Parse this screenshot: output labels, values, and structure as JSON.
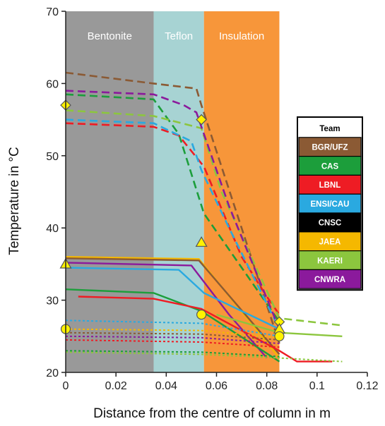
{
  "chart_data": {
    "type": "line",
    "xlabel": "Distance from the centre of column in m",
    "ylabel": "Temperature in °C",
    "xlim": [
      0,
      0.12
    ],
    "ylim": [
      20,
      70
    ],
    "x_ticks": [
      "0",
      "0.02",
      "0.04",
      "0.06",
      "0.08",
      "0.1",
      "0.12"
    ],
    "y_ticks": [
      "20",
      "30",
      "40",
      "50",
      "60",
      "70"
    ],
    "grid": false,
    "regions": [
      {
        "name": "Bentonite",
        "x0": 0,
        "x1": 0.035,
        "color": "#999999"
      },
      {
        "name": "Teflon",
        "x0": 0.035,
        "x1": 0.055,
        "color": "#a7d3d3"
      },
      {
        "name": "Insulation",
        "x0": 0.055,
        "x1": 0.085,
        "color": "#f7963a"
      }
    ],
    "legend": {
      "title": "Team",
      "placement": "right",
      "entries": [
        {
          "label": "BGR/UFZ",
          "color": "#8b5a34",
          "text_color": "#ffffff"
        },
        {
          "label": "CAS",
          "color": "#1c9e3b",
          "text_color": "#ffffff"
        },
        {
          "label": "LBNL",
          "color": "#ee1c24",
          "text_color": "#ffffff"
        },
        {
          "label": "ENSI/CAU",
          "color": "#2aa9e0",
          "text_color": "#ffffff"
        },
        {
          "label": "CNSC",
          "color": "#000000",
          "text_color": "#ffffff"
        },
        {
          "label": "JAEA",
          "color": "#f5b800",
          "text_color": "#ffffff"
        },
        {
          "label": "KAERI",
          "color": "#8cc63e",
          "text_color": "#ffffff"
        },
        {
          "label": "CNWRA",
          "color": "#8b1a9c",
          "text_color": "#ffffff"
        }
      ]
    },
    "series": [
      {
        "team": "BGR/UFZ",
        "style": "dashed",
        "x": [
          0,
          0.035,
          0.052,
          0.054,
          0.085
        ],
        "y": [
          61.5,
          60,
          59.3,
          57,
          24
        ]
      },
      {
        "team": "CAS",
        "style": "dashed",
        "x": [
          0,
          0.035,
          0.045,
          0.055,
          0.065,
          0.085
        ],
        "y": [
          58.5,
          57.8,
          53,
          42,
          37,
          27
        ]
      },
      {
        "team": "LBNL",
        "style": "dashed",
        "x": [
          0,
          0.035,
          0.045,
          0.055,
          0.07,
          0.08,
          0.085
        ],
        "y": [
          54.5,
          54,
          52.8,
          48.5,
          36,
          30.5,
          28
        ]
      },
      {
        "team": "ENSI/CAU",
        "style": "dashed",
        "x": [
          0,
          0.035,
          0.05,
          0.054,
          0.065,
          0.085
        ],
        "y": [
          55,
          54.5,
          52,
          48,
          40,
          26
        ]
      },
      {
        "team": "KAERI",
        "style": "dashed",
        "x": [
          0,
          0.035,
          0.054,
          0.062,
          0.085,
          0.11
        ],
        "y": [
          56.3,
          55.5,
          53.8,
          45,
          27.5,
          26.5
        ]
      },
      {
        "team": "CNWRA",
        "style": "dashed",
        "x": [
          0,
          0.035,
          0.047,
          0.052,
          0.054,
          0.065,
          0.085
        ],
        "y": [
          59,
          58.5,
          57,
          56,
          54,
          43,
          26
        ]
      },
      {
        "team": "JAEA",
        "style": "solid",
        "x": [
          0,
          0.053,
          0.085
        ],
        "y": [
          36,
          35.7,
          22
        ]
      },
      {
        "team": "BGR/UFZ",
        "style": "solid",
        "x": [
          0,
          0.053,
          0.085
        ],
        "y": [
          35.8,
          35.5,
          22.5
        ]
      },
      {
        "team": "CNWRA",
        "style": "solid",
        "x": [
          0,
          0.05,
          0.065,
          0.08
        ],
        "y": [
          35.2,
          34.8,
          28,
          22
        ]
      },
      {
        "team": "ENSI/CAU",
        "style": "solid",
        "x": [
          0,
          0.045,
          0.055,
          0.085
        ],
        "y": [
          34.5,
          34.2,
          31,
          26
        ]
      },
      {
        "team": "CAS",
        "style": "solid",
        "x": [
          0,
          0.035,
          0.054,
          0.085
        ],
        "y": [
          31.5,
          31,
          28.5,
          21.5
        ]
      },
      {
        "team": "LBNL",
        "style": "solid",
        "x": [
          0.005,
          0.035,
          0.054,
          0.085,
          0.092,
          0.106
        ],
        "y": [
          30.5,
          30.2,
          28.8,
          23,
          21.5,
          21.5
        ]
      },
      {
        "team": "KAERI",
        "style": "solid",
        "x": [
          0.06,
          0.085,
          0.11
        ],
        "y": [
          28,
          25.5,
          25
        ]
      },
      {
        "team": "ENSI/CAU",
        "style": "dotted",
        "x": [
          0,
          0.054,
          0.085
        ],
        "y": [
          27.2,
          26.8,
          25
        ]
      },
      {
        "team": "BGR/UFZ",
        "style": "dotted",
        "x": [
          0,
          0.054,
          0.085
        ],
        "y": [
          25.5,
          25.3,
          24.5
        ]
      },
      {
        "team": "LBNL",
        "style": "dotted",
        "x": [
          0,
          0.054,
          0.085
        ],
        "y": [
          24.5,
          24.2,
          23.5
        ]
      },
      {
        "team": "CAS",
        "style": "dotted",
        "x": [
          0,
          0.054,
          0.085
        ],
        "y": [
          23,
          22.8,
          22.2
        ]
      },
      {
        "team": "JAEA",
        "style": "dotted",
        "x": [
          0,
          0.054,
          0.085
        ],
        "y": [
          26,
          25.8,
          24.8
        ]
      },
      {
        "team": "KAERI",
        "style": "dotted",
        "x": [
          0,
          0.054,
          0.085,
          0.11
        ],
        "y": [
          22.8,
          22.5,
          22,
          21.5
        ]
      },
      {
        "team": "CNWRA",
        "style": "dotted",
        "x": [
          0,
          0.054,
          0.085
        ],
        "y": [
          25,
          24.8,
          24
        ]
      }
    ],
    "measurements": [
      {
        "marker": "diamond",
        "x": 0,
        "y": 57
      },
      {
        "marker": "diamond",
        "x": 0.054,
        "y": 55
      },
      {
        "marker": "diamond",
        "x": 0.085,
        "y": 27
      },
      {
        "marker": "triangle",
        "x": 0,
        "y": 35
      },
      {
        "marker": "triangle",
        "x": 0.054,
        "y": 38
      },
      {
        "marker": "triangle",
        "x": 0.085,
        "y": 26
      },
      {
        "marker": "circle",
        "x": 0,
        "y": 26
      },
      {
        "marker": "circle",
        "x": 0.054,
        "y": 28
      },
      {
        "marker": "circle",
        "x": 0.085,
        "y": 25
      }
    ]
  }
}
